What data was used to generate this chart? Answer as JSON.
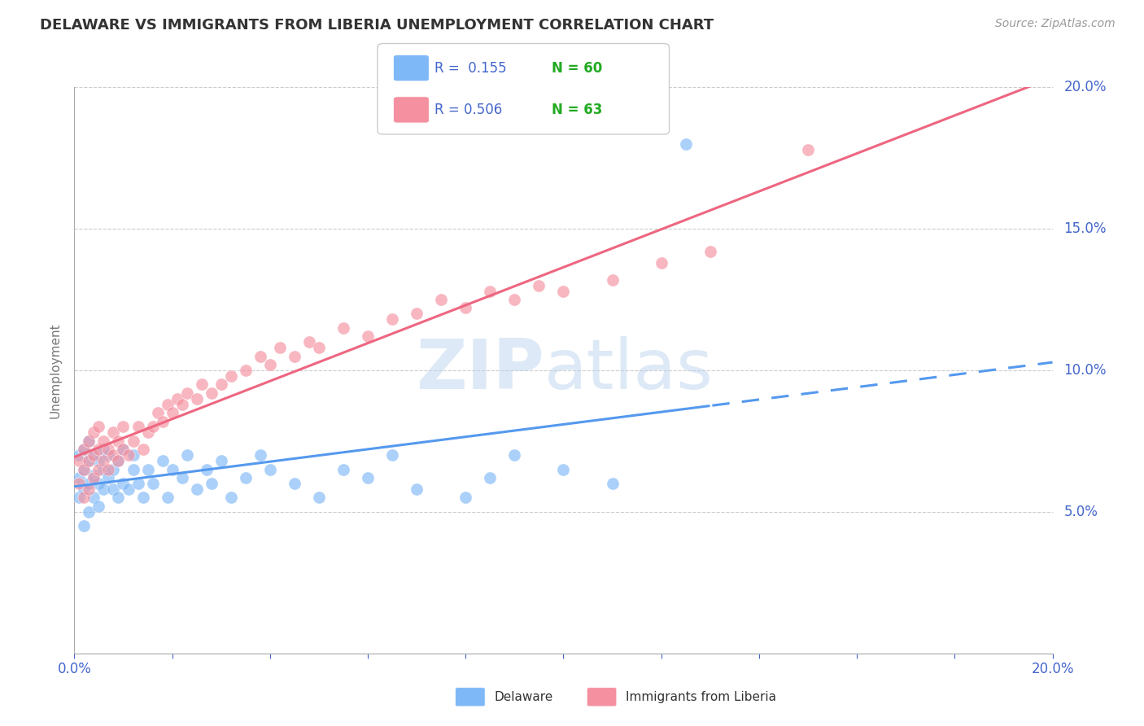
{
  "title": "DELAWARE VS IMMIGRANTS FROM LIBERIA UNEMPLOYMENT CORRELATION CHART",
  "source": "Source: ZipAtlas.com",
  "ylabel": "Unemployment",
  "color1": "#7EB8F7",
  "color2": "#F4909F",
  "trendline1_color": "#5599EE",
  "trendline2_color": "#EE6680",
  "watermark_bold": "ZIP",
  "watermark_light": "atlas",
  "background_color": "#FFFFFF",
  "axis_label_color": "#4466CC",
  "legend_r_color": "#4466CC",
  "legend_n_color": "#22AA22",
  "title_color": "#333333",
  "series1_label": "Delaware",
  "series2_label": "Immigrants from Liberia",
  "legend_r1": "R =  0.155",
  "legend_n1": "N = 60",
  "legend_r2": "R = 0.506",
  "legend_n2": "N = 63",
  "xmin": 0.0,
  "xmax": 0.2,
  "ymin": 0.0,
  "ymax": 0.2,
  "scatter1_x": [
    0.001,
    0.001,
    0.001,
    0.002,
    0.002,
    0.002,
    0.002,
    0.003,
    0.003,
    0.003,
    0.003,
    0.004,
    0.004,
    0.004,
    0.005,
    0.005,
    0.005,
    0.006,
    0.006,
    0.006,
    0.007,
    0.007,
    0.008,
    0.008,
    0.009,
    0.009,
    0.01,
    0.01,
    0.011,
    0.012,
    0.012,
    0.013,
    0.014,
    0.015,
    0.016,
    0.018,
    0.019,
    0.02,
    0.022,
    0.023,
    0.025,
    0.027,
    0.028,
    0.03,
    0.032,
    0.035,
    0.038,
    0.04,
    0.045,
    0.05,
    0.055,
    0.06,
    0.065,
    0.07,
    0.08,
    0.085,
    0.09,
    0.1,
    0.11,
    0.125
  ],
  "scatter1_y": [
    0.062,
    0.07,
    0.055,
    0.065,
    0.058,
    0.072,
    0.045,
    0.068,
    0.06,
    0.05,
    0.075,
    0.055,
    0.063,
    0.07,
    0.06,
    0.068,
    0.052,
    0.058,
    0.065,
    0.072,
    0.062,
    0.07,
    0.058,
    0.065,
    0.055,
    0.068,
    0.06,
    0.072,
    0.058,
    0.065,
    0.07,
    0.06,
    0.055,
    0.065,
    0.06,
    0.068,
    0.055,
    0.065,
    0.062,
    0.07,
    0.058,
    0.065,
    0.06,
    0.068,
    0.055,
    0.062,
    0.07,
    0.065,
    0.06,
    0.055,
    0.065,
    0.062,
    0.07,
    0.058,
    0.055,
    0.062,
    0.07,
    0.065,
    0.06,
    0.18
  ],
  "scatter2_x": [
    0.001,
    0.001,
    0.002,
    0.002,
    0.002,
    0.003,
    0.003,
    0.003,
    0.004,
    0.004,
    0.004,
    0.005,
    0.005,
    0.005,
    0.006,
    0.006,
    0.007,
    0.007,
    0.008,
    0.008,
    0.009,
    0.009,
    0.01,
    0.01,
    0.011,
    0.012,
    0.013,
    0.014,
    0.015,
    0.016,
    0.017,
    0.018,
    0.019,
    0.02,
    0.021,
    0.022,
    0.023,
    0.025,
    0.026,
    0.028,
    0.03,
    0.032,
    0.035,
    0.038,
    0.04,
    0.042,
    0.045,
    0.048,
    0.05,
    0.055,
    0.06,
    0.065,
    0.07,
    0.075,
    0.08,
    0.085,
    0.09,
    0.095,
    0.1,
    0.11,
    0.12,
    0.13,
    0.15
  ],
  "scatter2_y": [
    0.06,
    0.068,
    0.055,
    0.065,
    0.072,
    0.058,
    0.068,
    0.075,
    0.062,
    0.07,
    0.078,
    0.065,
    0.072,
    0.08,
    0.068,
    0.075,
    0.065,
    0.072,
    0.07,
    0.078,
    0.068,
    0.075,
    0.072,
    0.08,
    0.07,
    0.075,
    0.08,
    0.072,
    0.078,
    0.08,
    0.085,
    0.082,
    0.088,
    0.085,
    0.09,
    0.088,
    0.092,
    0.09,
    0.095,
    0.092,
    0.095,
    0.098,
    0.1,
    0.105,
    0.102,
    0.108,
    0.105,
    0.11,
    0.108,
    0.115,
    0.112,
    0.118,
    0.12,
    0.125,
    0.122,
    0.128,
    0.125,
    0.13,
    0.128,
    0.132,
    0.138,
    0.142,
    0.178
  ]
}
